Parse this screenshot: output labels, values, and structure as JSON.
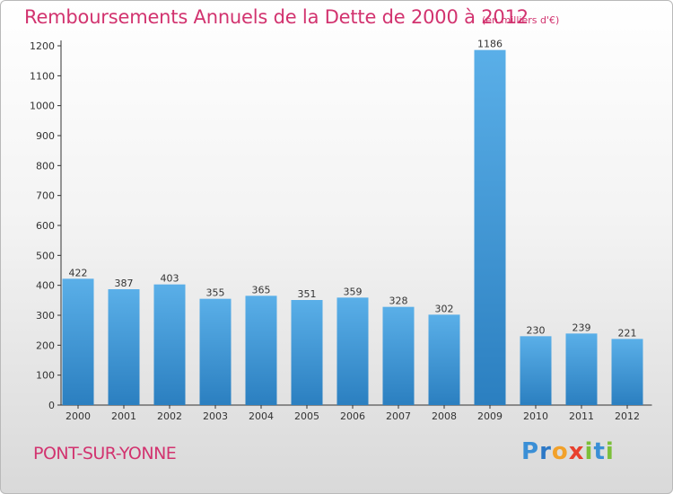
{
  "chart_data": {
    "type": "bar",
    "title": "Remboursements Annuels de la Dette de 2000 à 2012",
    "subtitle": "(en milliers d'€)",
    "xlabel": "",
    "ylabel": "",
    "categories": [
      "2000",
      "2001",
      "2002",
      "2003",
      "2004",
      "2005",
      "2006",
      "2007",
      "2008",
      "2009",
      "2010",
      "2011",
      "2012"
    ],
    "values": [
      422,
      387,
      403,
      355,
      365,
      351,
      359,
      328,
      302,
      1186,
      230,
      239,
      221
    ],
    "ylim": [
      0,
      1200
    ],
    "yticks": [
      0,
      100,
      200,
      300,
      400,
      500,
      600,
      700,
      800,
      900,
      1000,
      1100,
      1200
    ],
    "grid": false,
    "bar_color_top": "#5aafe8",
    "bar_color_bottom": "#2b7fc0"
  },
  "commune": "PONT-SUR-YONNE",
  "logo": {
    "letters": [
      "P",
      "r",
      "o",
      "x",
      "i",
      "t",
      "i"
    ],
    "colors": [
      "#3a8fd6",
      "#2c78c6",
      "#f2a12a",
      "#e8402e",
      "#7cbf3a",
      "#3a8fd6",
      "#7cbf3a"
    ]
  },
  "colors": {
    "title": "#d2336f",
    "axis": "#333333"
  }
}
